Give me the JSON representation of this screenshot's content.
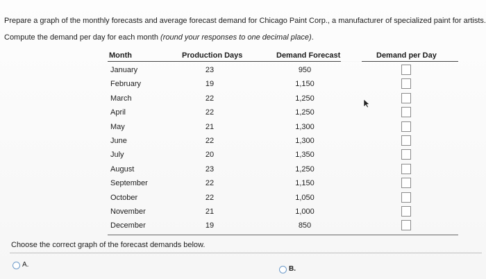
{
  "question": {
    "line1": "Prepare a graph of the monthly forecasts and average forecast demand for Chicago Paint Corp., a manufacturer of specialized paint for artists.",
    "line2_prefix": "Compute the demand per day for each month ",
    "line2_italic": "(round your responses to one decimal place)",
    "line2_suffix": "."
  },
  "table": {
    "headers": {
      "month": "Month",
      "production_days": "Production Days",
      "demand_forecast": "Demand Forecast",
      "demand_per_day": "Demand per Day"
    },
    "rows": [
      {
        "month": "January",
        "production_days": "23",
        "demand_forecast": "950",
        "demand_per_day": ""
      },
      {
        "month": "February",
        "production_days": "19",
        "demand_forecast": "1,150",
        "demand_per_day": ""
      },
      {
        "month": "March",
        "production_days": "22",
        "demand_forecast": "1,250",
        "demand_per_day": ""
      },
      {
        "month": "April",
        "production_days": "22",
        "demand_forecast": "1,250",
        "demand_per_day": ""
      },
      {
        "month": "May",
        "production_days": "21",
        "demand_forecast": "1,300",
        "demand_per_day": ""
      },
      {
        "month": "June",
        "production_days": "22",
        "demand_forecast": "1,300",
        "demand_per_day": ""
      },
      {
        "month": "July",
        "production_days": "20",
        "demand_forecast": "1,350",
        "demand_per_day": ""
      },
      {
        "month": "August",
        "production_days": "23",
        "demand_forecast": "1,250",
        "demand_per_day": ""
      },
      {
        "month": "September",
        "production_days": "22",
        "demand_forecast": "1,150",
        "demand_per_day": ""
      },
      {
        "month": "October",
        "production_days": "22",
        "demand_forecast": "1,050",
        "demand_per_day": ""
      },
      {
        "month": "November",
        "production_days": "21",
        "demand_forecast": "1,000",
        "demand_per_day": ""
      },
      {
        "month": "December",
        "production_days": "19",
        "demand_forecast": "850",
        "demand_per_day": ""
      }
    ]
  },
  "prompt_choose": "Choose the correct graph of the forecast demands below.",
  "options": {
    "a_label": "A.",
    "b_label": "B."
  },
  "colors": {
    "radio_border": "#6d9ac9",
    "input_border": "#8a8a8a"
  },
  "icons": {
    "cursor": "mouse-pointer-icon"
  }
}
